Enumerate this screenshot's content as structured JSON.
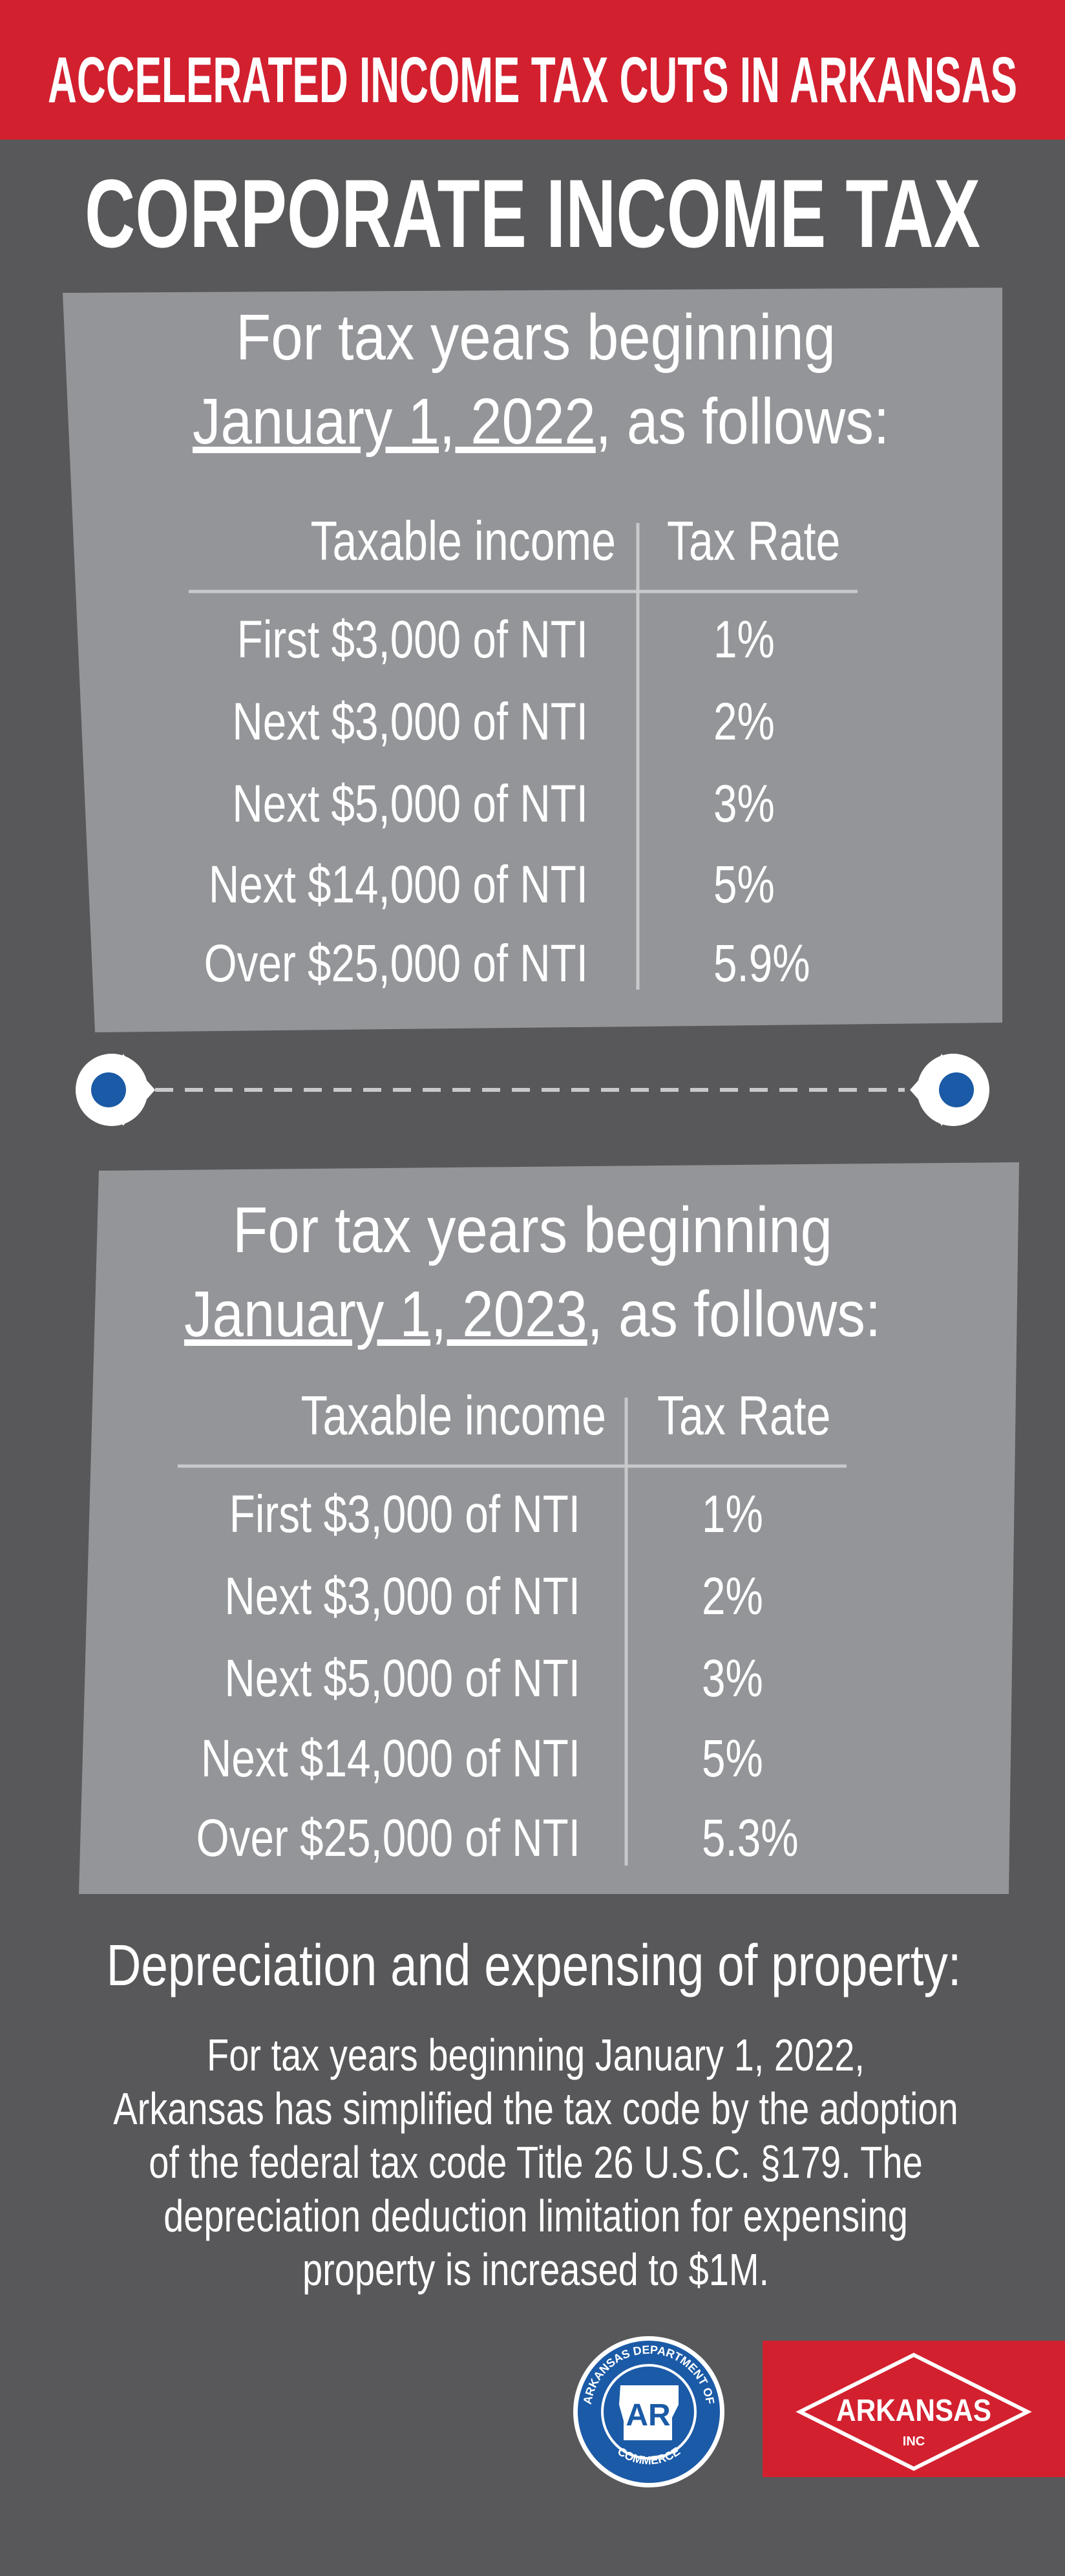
{
  "header": {
    "title": "ACCELERATED INCOME TAX CUTS IN ARKANSAS"
  },
  "heading": "CORPORATE INCOME TAX",
  "sections": [
    {
      "intro": "For tax years beginning",
      "date": "January 1, 2022",
      "suffix": ", as follows:",
      "columns": [
        "Taxable income",
        "Tax Rate"
      ],
      "rows": [
        [
          "First $3,000 of NTI",
          "1%"
        ],
        [
          "Next $3,000 of NTI",
          "2%"
        ],
        [
          "Next $5,000 of NTI",
          "3%"
        ],
        [
          "Next $14,000 of NTI",
          "5%"
        ],
        [
          "Over $25,000 of NTI",
          "5.9%"
        ]
      ]
    },
    {
      "intro": "For tax years beginning",
      "date": "January 1, 2023",
      "suffix": ", as follows:",
      "columns": [
        "Taxable income",
        "Tax Rate"
      ],
      "rows": [
        [
          "First $3,000 of NTI",
          "1%"
        ],
        [
          "Next $3,000 of NTI",
          "2%"
        ],
        [
          "Next $5,000 of NTI",
          "3%"
        ],
        [
          "Next $14,000 of NTI",
          "5%"
        ],
        [
          "Over $25,000 of NTI",
          "5.3%"
        ]
      ]
    }
  ],
  "depreciation": {
    "heading": "Depreciation and expensing of property:",
    "lines": [
      "For tax years beginning January 1, 2022,",
      "Arkansas has simplified the tax code by the adoption",
      "of the federal tax code Title 26 U.S.C. §179. The",
      "depreciation deduction limitation for expensing",
      "property is increased to $1M."
    ]
  },
  "logos": {
    "seal_ring_top": "ARKANSAS DEPARTMENT OF",
    "seal_ring_bottom": "COMMERCE",
    "seal_center": "AR",
    "brand": "ARKANSAS",
    "brand_sub": "INC"
  }
}
